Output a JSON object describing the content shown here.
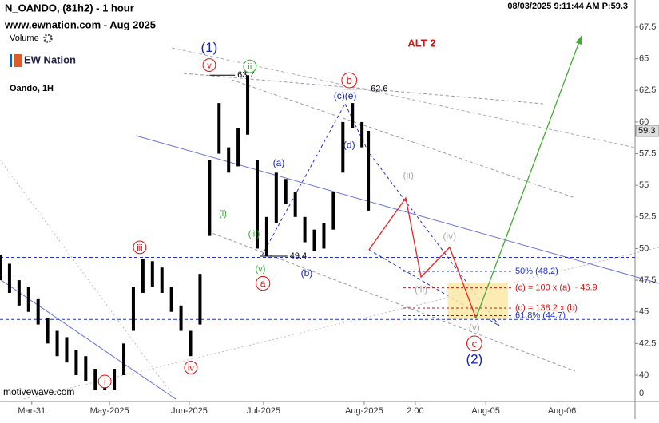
{
  "chart_data": {
    "type": "range",
    "title": "N_OANDO, (81h2) - 1 hour",
    "subtitle": "www.ewnation.com  - Aug 2025",
    "volume_label": "Volume",
    "logo": "EW Nation",
    "instrument": "Oando, 1H",
    "timestamp": "08/03/2025 9:11:44 AM  P:59.3",
    "scenario": "ALT 2",
    "watermark": "motivewave.com",
    "last_price": 59.3,
    "volume_tick": 0,
    "color": "#000000",
    "x": [
      0,
      3,
      6,
      9,
      12,
      15,
      18,
      21,
      24,
      27,
      30,
      33,
      36,
      39,
      42,
      45,
      48,
      51,
      54,
      57,
      60,
      63,
      66,
      69,
      72,
      75,
      78,
      81,
      84,
      87,
      90,
      93,
      96,
      99,
      102,
      105,
      108,
      111,
      114,
      116
    ],
    "high": [
      49.5,
      48.8,
      47.5,
      47,
      46,
      44.5,
      43.5,
      43,
      42,
      41.5,
      40.5,
      40,
      40.5,
      42.5,
      47,
      49.2,
      49,
      48.5,
      47,
      45.5,
      43.5,
      48,
      57,
      61.5,
      58,
      59.5,
      63.7,
      57,
      52.5,
      56,
      55.5,
      54.5,
      52.5,
      51.5,
      52,
      54.5,
      60,
      61.5,
      60,
      59.3
    ],
    "low": [
      47.5,
      46.5,
      45.5,
      45,
      44,
      42.5,
      41.5,
      41,
      40,
      39.5,
      38.8,
      38.8,
      38.8,
      40,
      43.5,
      46.5,
      47,
      46.5,
      45,
      43.5,
      41.5,
      44,
      51,
      57.5,
      56,
      56.5,
      59,
      50,
      49.4,
      52,
      53.5,
      52.5,
      50.5,
      49.8,
      50,
      51.5,
      56,
      59.5,
      58,
      53
    ],
    "xlim": [
      0,
      200
    ],
    "xticks": [
      {
        "value": 10,
        "label": "Mar-31"
      },
      {
        "value": 34.5,
        "label": "May-2025"
      },
      {
        "value": 59.6,
        "label": "Jun-2025"
      },
      {
        "value": 83,
        "label": "Jul-2025"
      },
      {
        "value": 114.7,
        "label": "Aug-2025"
      },
      {
        "value": 130.8,
        "label": "2:00"
      },
      {
        "value": 153,
        "label": "Aug-05"
      },
      {
        "value": 177,
        "label": "Aug-06"
      }
    ],
    "ylim": [
      38.6,
      69.3
    ],
    "yticks": [
      40,
      42.5,
      45,
      47.5,
      50,
      52.5,
      55,
      57.5,
      60,
      62.5,
      65,
      67.5
    ],
    "price_labels": [
      {
        "text": "63.7",
        "value": 63.7,
        "x": [
          66,
          74
        ]
      },
      {
        "text": "62.6",
        "value": 62.6,
        "x": [
          108,
          116
        ]
      },
      {
        "text": "49.4",
        "value": 49.4,
        "x": [
          82,
          90.5
        ]
      }
    ],
    "levels": [
      {
        "value": 49.3,
        "color": "#2233cc"
      },
      {
        "value": 44.4,
        "color": "#2233cc"
      },
      {
        "value": 48.2,
        "label": "50% (48.2)",
        "color": "#2233cc"
      },
      {
        "value": 46.9,
        "label": "(c) = 100 x (a) ~ 46.9",
        "color": "#dd1111"
      },
      {
        "value": 45.3,
        "label": "(c) = 138.2 x (b)",
        "color": "#dd1111"
      },
      {
        "value": 44.7,
        "label": "61.8% (44.7)",
        "color": "#2233cc"
      }
    ],
    "target_zone": {
      "x": [
        141,
        160
      ],
      "y": [
        44.4,
        47.3
      ],
      "color": "#fbe7a6"
    },
    "projections": [
      {
        "color": "#ee2222",
        "x": [
          116.2,
          127.8,
          132.6,
          141.6,
          149.9
        ],
        "y": [
          49.9,
          54.0,
          47.75,
          50.1,
          44.5
        ]
      },
      {
        "color": "#44aa33",
        "x": [
          149.9,
          183.1
        ],
        "y": [
          44.5,
          66.8
        ]
      }
    ],
    "annotations": [
      {
        "text": "(1)",
        "x": 65.9,
        "y": 65.9,
        "color": "#1122bb",
        "circled": false,
        "size": 17
      },
      {
        "text": "v",
        "x": 65.9,
        "y": 64.5,
        "color": "#dd1111",
        "circled": true,
        "size": 11
      },
      {
        "text": "ii",
        "x": 78.7,
        "y": 64.4,
        "color": "#33aa33",
        "circled": true,
        "size": 11
      },
      {
        "text": "b",
        "x": 110,
        "y": 63.3,
        "color": "#dd1111",
        "circled": true,
        "size": 13
      },
      {
        "text": "(c)(e)",
        "x": 108.7,
        "y": 62.1,
        "color": "#1122bb",
        "circled": false,
        "size": 12
      },
      {
        "text": "(d)",
        "x": 110,
        "y": 58.2,
        "color": "#1122bb",
        "circled": false,
        "size": 12
      },
      {
        "text": "(a)",
        "x": 87.8,
        "y": 56.8,
        "color": "#1122bb",
        "circled": false,
        "size": 12
      },
      {
        "text": "(ii)",
        "x": 128.6,
        "y": 55.8,
        "color": "#aaaaaa",
        "circled": false,
        "size": 12
      },
      {
        "text": "(iv)",
        "x": 141.6,
        "y": 51.0,
        "color": "#aaaaaa",
        "circled": false,
        "size": 12
      },
      {
        "text": "(iii)",
        "x": 132.6,
        "y": 46.8,
        "color": "#aaaaaa",
        "circled": false,
        "size": 12
      },
      {
        "text": "(v)",
        "x": 149.4,
        "y": 43.8,
        "color": "#aaaaaa",
        "circled": false,
        "size": 12
      },
      {
        "text": "iii",
        "x": 44,
        "y": 50.1,
        "color": "#dd1111",
        "circled": true,
        "size": 11
      },
      {
        "text": "(i)",
        "x": 70.2,
        "y": 52.8,
        "color": "#33aa33",
        "circled": false,
        "size": 11
      },
      {
        "text": "(iii)",
        "x": 80,
        "y": 51.2,
        "color": "#33aa33",
        "circled": false,
        "size": 11
      },
      {
        "text": "(v)",
        "x": 82,
        "y": 48.4,
        "color": "#33aa33",
        "circled": false,
        "size": 11
      },
      {
        "text": "a",
        "x": 82.8,
        "y": 47.25,
        "color": "#dd1111",
        "circled": true,
        "size": 12
      },
      {
        "text": "(b)",
        "x": 96.6,
        "y": 48.1,
        "color": "#1122bb",
        "circled": false,
        "size": 12
      },
      {
        "text": "iv",
        "x": 60.1,
        "y": 40.6,
        "color": "#dd1111",
        "circled": true,
        "size": 11
      },
      {
        "text": "i",
        "x": 33,
        "y": 39.5,
        "color": "#dd1111",
        "circled": true,
        "size": 11
      },
      {
        "text": "c",
        "x": 149.4,
        "y": 42.5,
        "color": "#dd1111",
        "circled": true,
        "size": 13
      },
      {
        "text": "(2)",
        "x": 149.4,
        "y": 41.25,
        "color": "#1122bb",
        "circled": false,
        "size": 17
      }
    ]
  }
}
